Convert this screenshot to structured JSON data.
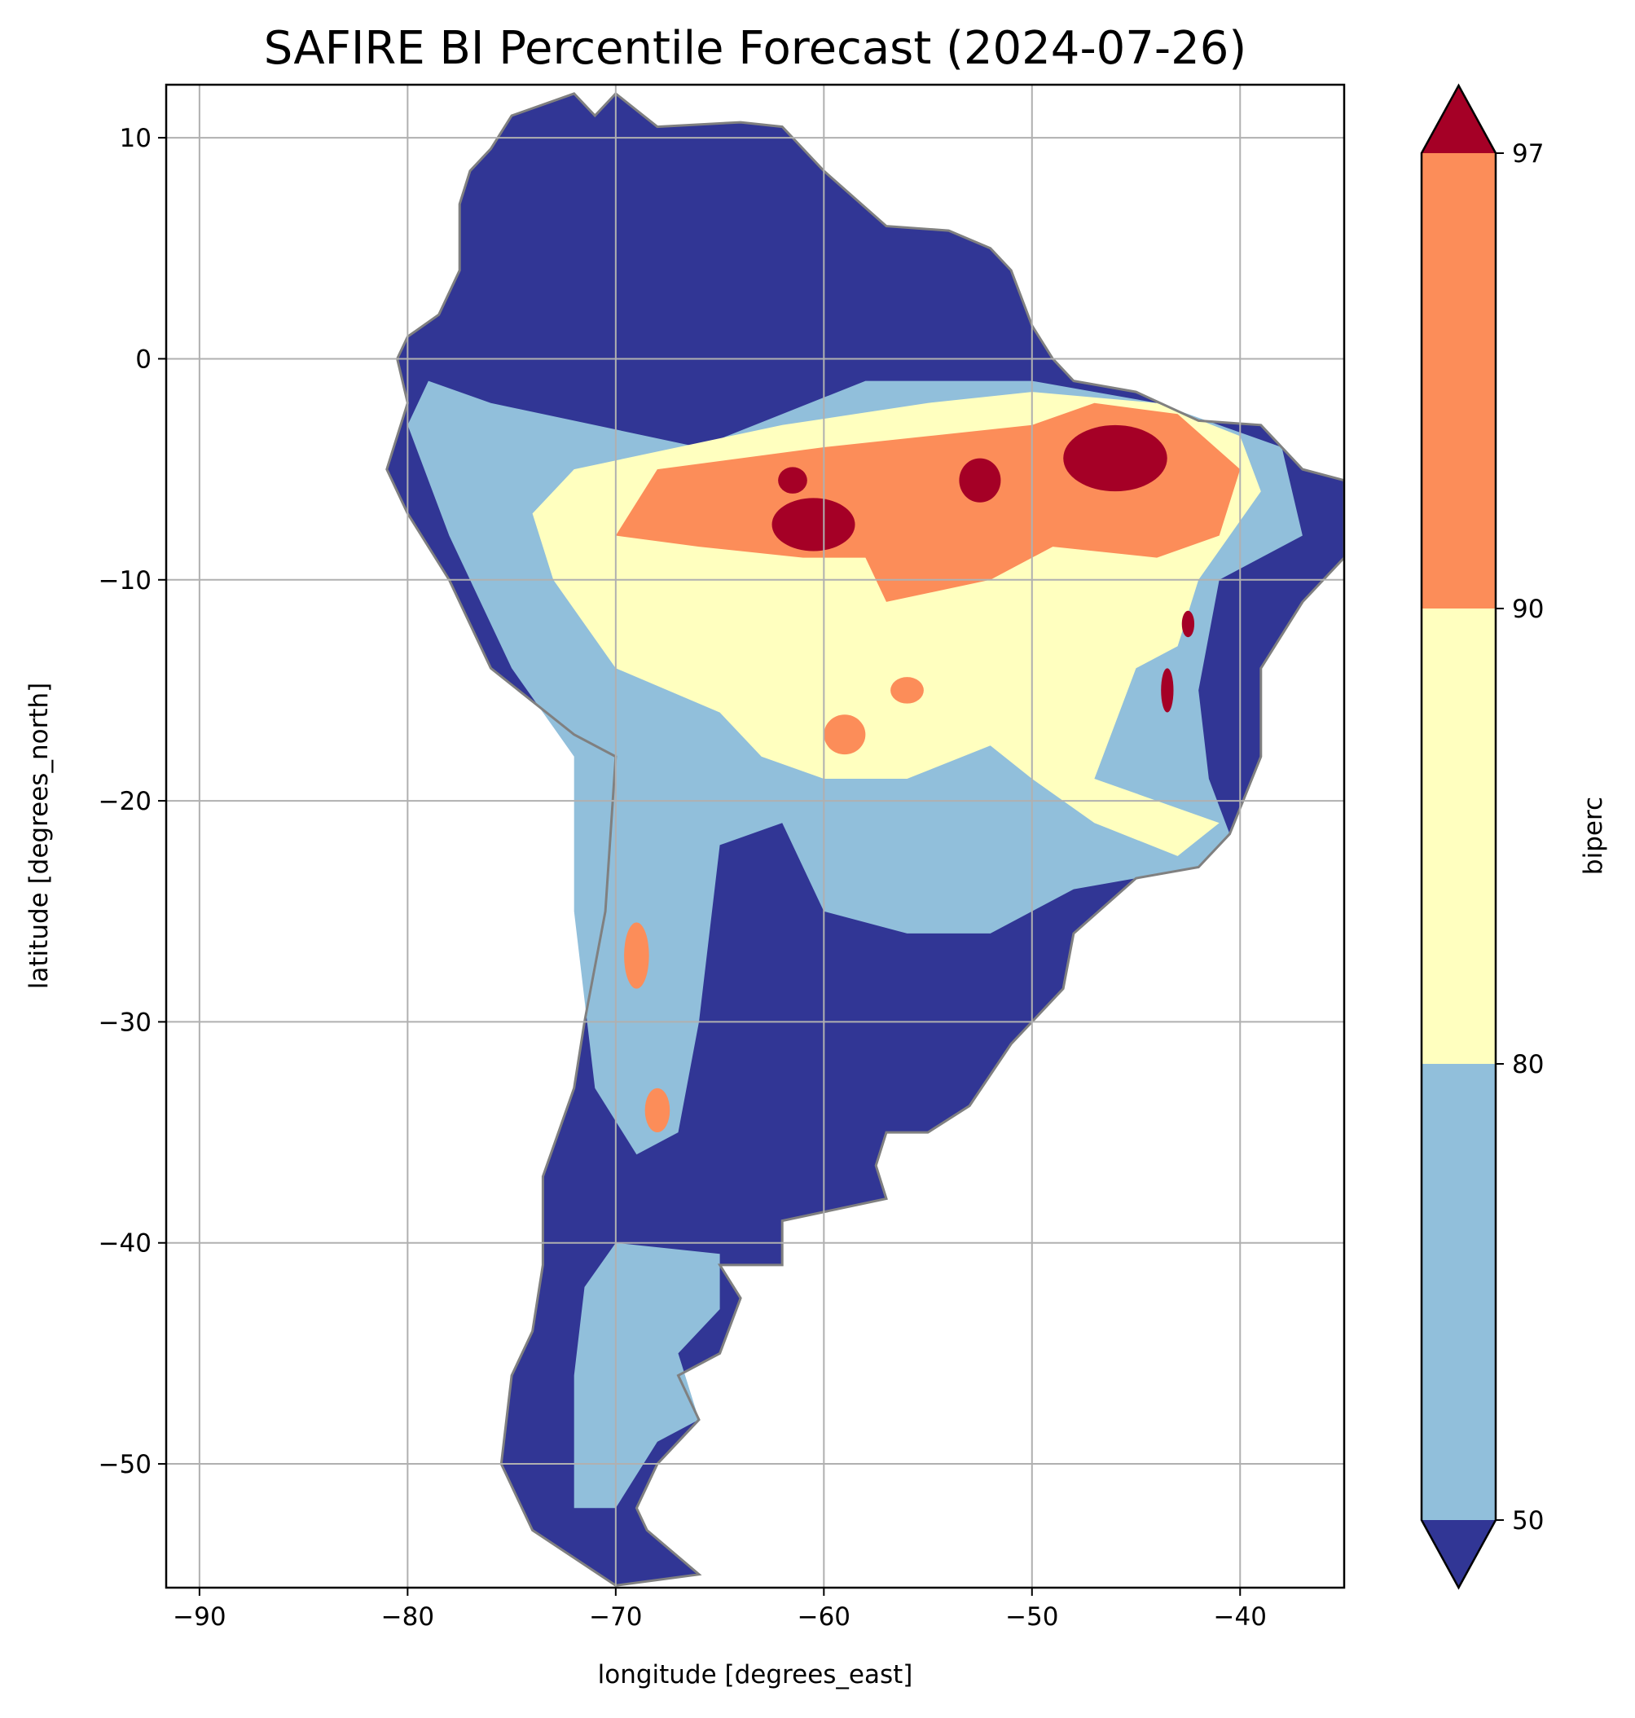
{
  "chart_data": {
    "type": "heatmap",
    "title": "SAFIRE BI Percentile Forecast (2024-07-26)",
    "xlabel": "longitude [degrees_east]",
    "ylabel": "latitude [degrees_north]",
    "xlim": [
      -91.6,
      -35.0
    ],
    "ylim": [
      -55.6,
      12.4
    ],
    "x_ticks": [
      -90,
      -80,
      -70,
      -60,
      -50,
      -40
    ],
    "x_tick_labels": [
      "−90",
      "−80",
      "−70",
      "−60",
      "−50",
      "−40"
    ],
    "y_ticks": [
      10,
      0,
      -10,
      -20,
      -30,
      -40,
      -50
    ],
    "y_tick_labels": [
      "10",
      "0",
      "−10",
      "−20",
      "−30",
      "−40",
      "−50"
    ],
    "grid": true,
    "colorbar": {
      "label": "biperc",
      "levels": [
        50,
        80,
        90,
        97
      ],
      "tick_labels": [
        "50",
        "80",
        "90",
        "97"
      ],
      "extend": "both",
      "colors": {
        "under_50": "#313695",
        "50_80": "#91bfdb",
        "80_90": "#ffffbf",
        "90_97": "#fc8d59",
        "over_97": "#a50026"
      }
    },
    "border_color": "#808080",
    "grid_color": "#b0b0b0"
  }
}
